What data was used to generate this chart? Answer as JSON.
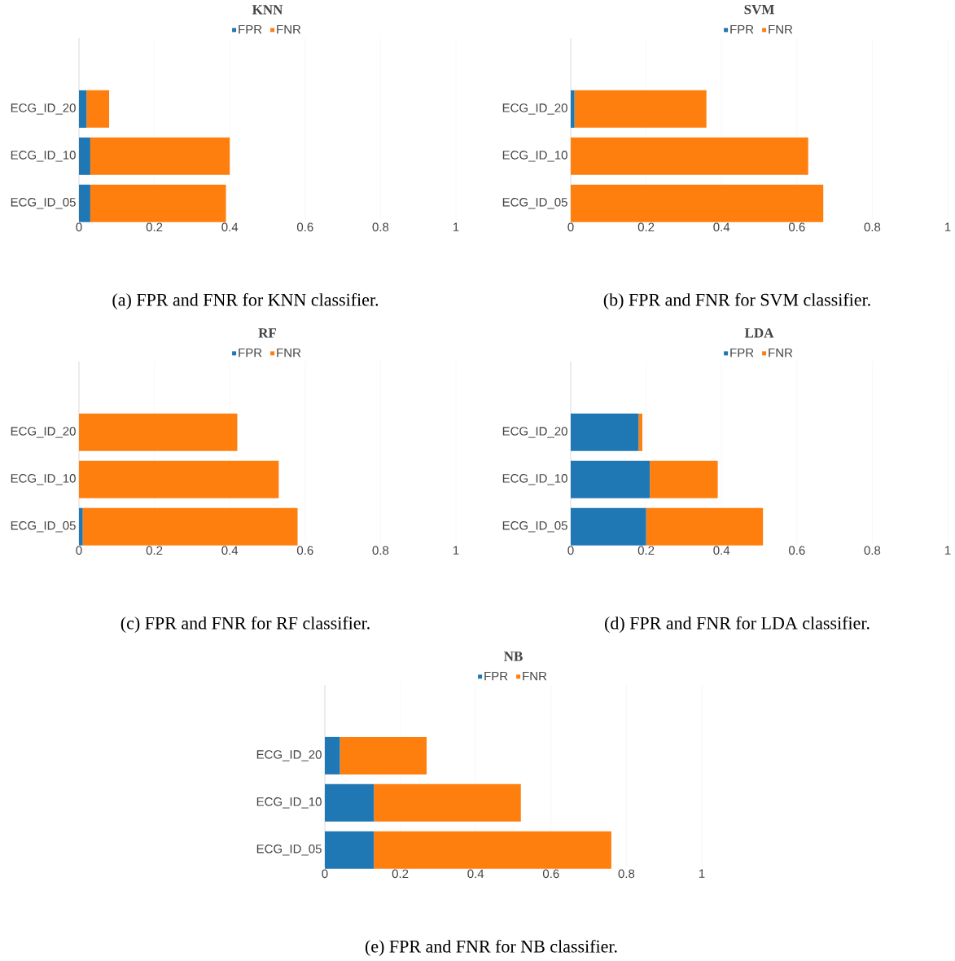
{
  "chart_data": [
    {
      "type": "bar",
      "orientation": "horizontal",
      "stacked": true,
      "title": "KNN",
      "categories": [
        "ECG_ID_20",
        "ECG_ID_10",
        "ECG_ID_05"
      ],
      "series": [
        {
          "name": "FPR",
          "color": "#1f77b4",
          "values": [
            0.02,
            0.03,
            0.03
          ]
        },
        {
          "name": "FNR",
          "color": "#ff7f0e",
          "values": [
            0.06,
            0.37,
            0.36
          ]
        }
      ],
      "xlim": [
        0,
        1
      ],
      "xticks": [
        0,
        0.2,
        0.4,
        0.6,
        0.8,
        1
      ],
      "grid": "x",
      "legend": "top",
      "annotations": [
        "(a) FPR and FNR for KNN classifier."
      ]
    },
    {
      "type": "bar",
      "orientation": "horizontal",
      "stacked": true,
      "title": "SVM",
      "categories": [
        "ECG_ID_20",
        "ECG_ID_10",
        "ECG_ID_05"
      ],
      "series": [
        {
          "name": "FPR",
          "color": "#1f77b4",
          "values": [
            0.01,
            0,
            0
          ]
        },
        {
          "name": "FNR",
          "color": "#ff7f0e",
          "values": [
            0.35,
            0.63,
            0.67
          ]
        }
      ],
      "xlim": [
        0,
        1
      ],
      "xticks": [
        0,
        0.2,
        0.4,
        0.6,
        0.8,
        1
      ],
      "grid": "x",
      "legend": "top",
      "annotations": [
        "(b) FPR and FNR for SVM classifier."
      ]
    },
    {
      "type": "bar",
      "orientation": "horizontal",
      "stacked": true,
      "title": "RF",
      "categories": [
        "ECG_ID_20",
        "ECG_ID_10",
        "ECG_ID_05"
      ],
      "series": [
        {
          "name": "FPR",
          "color": "#1f77b4",
          "values": [
            0,
            0,
            0.01
          ]
        },
        {
          "name": "FNR",
          "color": "#ff7f0e",
          "values": [
            0.42,
            0.53,
            0.57
          ]
        }
      ],
      "xlim": [
        0,
        1
      ],
      "xticks": [
        0,
        0.2,
        0.4,
        0.6,
        0.8,
        1
      ],
      "grid": "x",
      "legend": "top",
      "annotations": [
        "(c) FPR and FNR for RF classifier."
      ]
    },
    {
      "type": "bar",
      "orientation": "horizontal",
      "stacked": true,
      "title": "LDA",
      "categories": [
        "ECG_ID_20",
        "ECG_ID_10",
        "ECG_ID_05"
      ],
      "series": [
        {
          "name": "FPR",
          "color": "#1f77b4",
          "values": [
            0.18,
            0.21,
            0.2
          ]
        },
        {
          "name": "FNR",
          "color": "#ff7f0e",
          "values": [
            0.01,
            0.18,
            0.31
          ]
        }
      ],
      "xlim": [
        0,
        1
      ],
      "xticks": [
        0,
        0.2,
        0.4,
        0.6,
        0.8,
        1
      ],
      "grid": "x",
      "legend": "top",
      "annotations": [
        "(d) FPR and FNR for LDA classifier."
      ]
    },
    {
      "type": "bar",
      "orientation": "horizontal",
      "stacked": true,
      "title": "NB",
      "categories": [
        "ECG_ID_20",
        "ECG_ID_10",
        "ECG_ID_05"
      ],
      "series": [
        {
          "name": "FPR",
          "color": "#1f77b4",
          "values": [
            0.04,
            0.13,
            0.13
          ]
        },
        {
          "name": "FNR",
          "color": "#ff7f0e",
          "values": [
            0.23,
            0.39,
            0.63
          ]
        }
      ],
      "xlim": [
        0,
        1
      ],
      "xticks": [
        0,
        0.2,
        0.4,
        0.6,
        0.8,
        1
      ],
      "grid": "x",
      "legend": "top",
      "annotations": [
        "(e) FPR and FNR for NB classifier."
      ]
    }
  ]
}
